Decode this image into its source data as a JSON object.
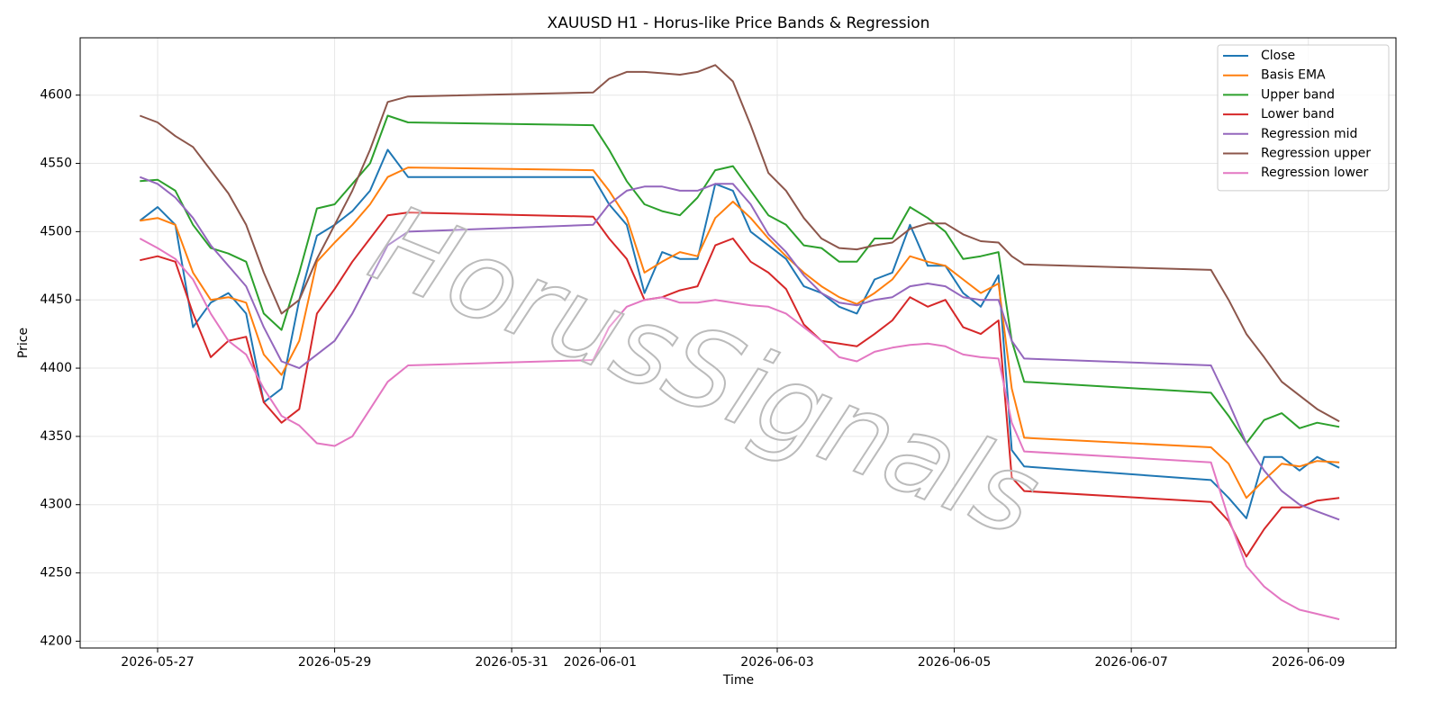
{
  "chart_data": {
    "type": "line",
    "title": "XAUUSD H1 - Horus-like Price Bands & Regression",
    "x_label": "Time",
    "y_label": "Price",
    "watermark": "HorusSignals",
    "xlim": [
      -0.875,
      13.99
    ],
    "ylim": [
      4195,
      4642
    ],
    "xticks": [
      {
        "value": 0,
        "label": "2026-05-27"
      },
      {
        "value": 2,
        "label": "2026-05-29"
      },
      {
        "value": 4,
        "label": "2026-05-31"
      },
      {
        "value": 5,
        "label": "2026-06-01"
      },
      {
        "value": 7,
        "label": "2026-06-03"
      },
      {
        "value": 9,
        "label": "2026-06-05"
      },
      {
        "value": 11,
        "label": "2026-06-07"
      },
      {
        "value": 13,
        "label": "2026-06-09"
      }
    ],
    "yticks": [
      4200,
      4250,
      4300,
      4350,
      4400,
      4450,
      4500,
      4550,
      4600
    ],
    "grid": true,
    "legend": "upper right",
    "x": [
      -0.2,
      0,
      0.2,
      0.4,
      0.6,
      0.8,
      1.0,
      1.2,
      1.4,
      1.6,
      1.8,
      2.0,
      2.2,
      2.4,
      2.6,
      2.83,
      4.92,
      5.1,
      5.3,
      5.5,
      5.7,
      5.9,
      6.1,
      6.3,
      6.5,
      6.7,
      6.9,
      7.1,
      7.3,
      7.5,
      7.7,
      7.9,
      8.1,
      8.3,
      8.5,
      8.7,
      8.9,
      9.1,
      9.3,
      9.5,
      9.65,
      9.79,
      11.9,
      12.1,
      12.3,
      12.5,
      12.7,
      12.9,
      13.1,
      13.35
    ],
    "series": [
      {
        "name": "Close",
        "color": "#1f77b4",
        "values": [
          4508,
          4518,
          4505,
          4430,
          4448,
          4455,
          4440,
          4375,
          4385,
          4450,
          4497,
          4505,
          4515,
          4530,
          4560,
          4540,
          4540,
          4520,
          4505,
          4455,
          4485,
          4480,
          4480,
          4535,
          4530,
          4500,
          4490,
          4480,
          4460,
          4455,
          4445,
          4440,
          4465,
          4470,
          4505,
          4475,
          4475,
          4455,
          4445,
          4468,
          4340,
          4328,
          4318,
          4305,
          4290,
          4335,
          4335,
          4325,
          4335,
          4327
        ]
      },
      {
        "name": "Basis EMA",
        "color": "#ff7f0e",
        "values": [
          4508,
          4510,
          4505,
          4470,
          4450,
          4452,
          4448,
          4410,
          4395,
          4420,
          4478,
          4492,
          4505,
          4520,
          4540,
          4547,
          4545,
          4530,
          4510,
          4470,
          4478,
          4485,
          4482,
          4510,
          4522,
          4510,
          4495,
          4482,
          4470,
          4460,
          4452,
          4447,
          4455,
          4465,
          4482,
          4478,
          4475,
          4465,
          4455,
          4462,
          4385,
          4349,
          4342,
          4330,
          4305,
          4318,
          4330,
          4328,
          4332,
          4331
        ]
      },
      {
        "name": "Upper band",
        "color": "#2ca02c",
        "values": [
          4537,
          4538,
          4530,
          4505,
          4488,
          4484,
          4478,
          4440,
          4428,
          4470,
          4517,
          4520,
          4535,
          4550,
          4585,
          4580,
          4578,
          4560,
          4537,
          4520,
          4515,
          4512,
          4525,
          4545,
          4548,
          4530,
          4512,
          4505,
          4490,
          4488,
          4478,
          4478,
          4495,
          4495,
          4518,
          4510,
          4500,
          4480,
          4482,
          4485,
          4420,
          4390,
          4382,
          4365,
          4345,
          4362,
          4367,
          4356,
          4360,
          4357
        ]
      },
      {
        "name": "Lower band",
        "color": "#d62728",
        "values": [
          4479,
          4482,
          4478,
          4440,
          4408,
          4420,
          4423,
          4375,
          4360,
          4370,
          4440,
          4458,
          4478,
          4495,
          4512,
          4514,
          4511,
          4495,
          4480,
          4450,
          4452,
          4457,
          4460,
          4490,
          4495,
          4478,
          4470,
          4458,
          4432,
          4420,
          4418,
          4416,
          4425,
          4435,
          4452,
          4445,
          4450,
          4430,
          4425,
          4435,
          4320,
          4310,
          4302,
          4288,
          4262,
          4282,
          4298,
          4298,
          4303,
          4305
        ]
      },
      {
        "name": "Regression mid",
        "color": "#9467bd",
        "values": [
          4540,
          4535,
          4525,
          4510,
          4490,
          4475,
          4460,
          4430,
          4405,
          4400,
          4410,
          4420,
          4440,
          4465,
          4490,
          4500,
          4505,
          4520,
          4530,
          4533,
          4533,
          4530,
          4530,
          4535,
          4535,
          4520,
          4498,
          4485,
          4468,
          4455,
          4448,
          4446,
          4450,
          4452,
          4460,
          4462,
          4460,
          4452,
          4450,
          4450,
          4420,
          4407,
          4402,
          4375,
          4345,
          4325,
          4310,
          4300,
          4295,
          4289
        ]
      },
      {
        "name": "Regression upper",
        "color": "#8c564b",
        "values": [
          4585,
          4580,
          4570,
          4562,
          4545,
          4528,
          4505,
          4470,
          4440,
          4450,
          4480,
          4505,
          4530,
          4560,
          4595,
          4599,
          4602,
          4612,
          4617,
          4617,
          4616,
          4615,
          4617,
          4622,
          4610,
          4578,
          4543,
          4530,
          4510,
          4495,
          4488,
          4487,
          4490,
          4492,
          4502,
          4506,
          4506,
          4498,
          4493,
          4492,
          4482,
          4476,
          4472,
          4450,
          4425,
          4408,
          4390,
          4380,
          4370,
          4361
        ]
      },
      {
        "name": "Regression lower",
        "color": "#e377c2",
        "values": [
          4495,
          4488,
          4480,
          4465,
          4440,
          4420,
          4410,
          4385,
          4365,
          4358,
          4345,
          4343,
          4350,
          4370,
          4390,
          4402,
          4406,
          4430,
          4445,
          4450,
          4452,
          4448,
          4448,
          4450,
          4448,
          4446,
          4445,
          4440,
          4430,
          4420,
          4408,
          4405,
          4412,
          4415,
          4417,
          4418,
          4416,
          4410,
          4408,
          4407,
          4360,
          4339,
          4331,
          4290,
          4255,
          4240,
          4230,
          4223,
          4220,
          4216
        ]
      }
    ]
  }
}
